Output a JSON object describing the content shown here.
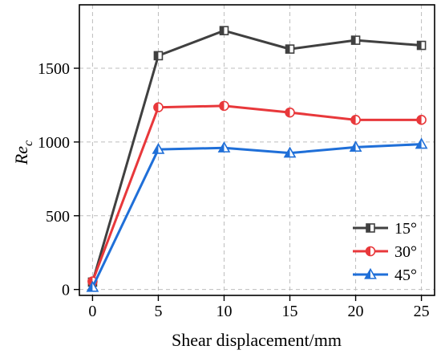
{
  "chart_data": {
    "type": "line",
    "xlabel": "Shear displacement/mm",
    "ylabel": {
      "main": "Re",
      "sub": "c"
    },
    "x": [
      0,
      5,
      10,
      15,
      20,
      25
    ],
    "xlim": [
      -1,
      26
    ],
    "ylim": [
      -40,
      1930
    ],
    "xticks": [
      0,
      5,
      10,
      15,
      20,
      25
    ],
    "yticks": [
      0,
      500,
      1000,
      1500
    ],
    "grid": true,
    "legend_position": "bottom-right",
    "series": [
      {
        "name": "15°",
        "color": "#404040",
        "marker": "half-square",
        "values": [
          50,
          1585,
          1755,
          1630,
          1690,
          1655
        ]
      },
      {
        "name": "30°",
        "color": "#e8383b",
        "marker": "half-circle",
        "values": [
          55,
          1235,
          1245,
          1200,
          1150,
          1150
        ]
      },
      {
        "name": "45°",
        "color": "#1f6fd8",
        "marker": "half-triangle",
        "values": [
          15,
          950,
          960,
          925,
          965,
          985
        ]
      }
    ]
  }
}
